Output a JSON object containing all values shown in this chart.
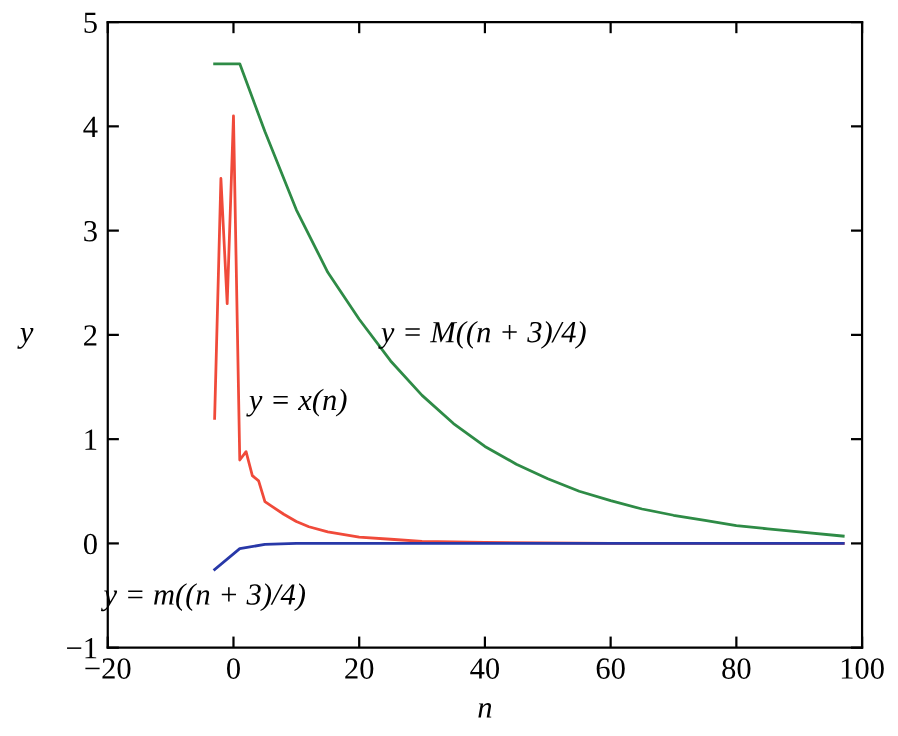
{
  "chart_data": {
    "type": "line",
    "xlabel": "n",
    "ylabel": "y",
    "xlim": [
      -20,
      100
    ],
    "ylim": [
      -1,
      5
    ],
    "xticks": [
      -20,
      0,
      20,
      40,
      60,
      80,
      100
    ],
    "yticks": [
      -1,
      0,
      1,
      2,
      3,
      4,
      5
    ],
    "grid": false,
    "legend": false,
    "series": [
      {
        "color": "#2e8b46",
        "x": [
          -3,
          1,
          5,
          10,
          15,
          20,
          25,
          30,
          35,
          40,
          45,
          50,
          55,
          60,
          65,
          70,
          75,
          80,
          85,
          90,
          97
        ],
        "values": [
          4.6,
          4.6,
          3.95,
          3.2,
          2.6,
          2.15,
          1.75,
          1.42,
          1.15,
          0.93,
          0.76,
          0.62,
          0.5,
          0.41,
          0.33,
          0.27,
          0.22,
          0.17,
          0.14,
          0.11,
          0.07
        ]
      },
      {
        "color": "#f04a3a",
        "x": [
          -3,
          -2,
          -1,
          0,
          1,
          2,
          3,
          4,
          5,
          6,
          8,
          10,
          12,
          15,
          20,
          25,
          30,
          40,
          60,
          97
        ],
        "values": [
          1.2,
          3.5,
          2.3,
          4.1,
          0.8,
          0.88,
          0.65,
          0.6,
          0.4,
          0.36,
          0.28,
          0.21,
          0.16,
          0.11,
          0.06,
          0.04,
          0.02,
          0.01,
          0.0,
          0.0
        ]
      },
      {
        "color": "#2838a8",
        "x": [
          -3,
          1,
          5,
          10,
          20,
          97
        ],
        "values": [
          -0.25,
          -0.05,
          -0.01,
          0,
          0,
          0
        ]
      }
    ],
    "annotations": [
      {
        "text": "y = M((n + 3)/4)",
        "x": 23,
        "y": 2.0
      },
      {
        "text": "y = x(n)",
        "x": 2,
        "y": 1.35
      },
      {
        "text": "y = m((n + 3)/4)",
        "x": -3,
        "y": -0.25
      }
    ]
  }
}
